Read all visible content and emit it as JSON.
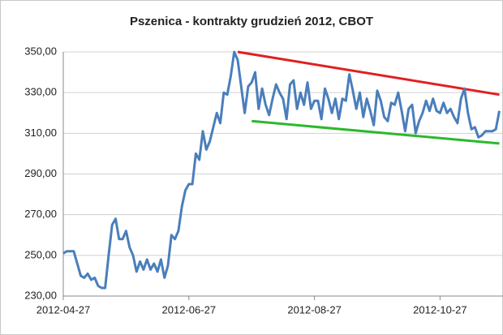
{
  "chart_data": {
    "type": "line",
    "title": "Pszenica - kontrakty grudzień 2012, CBOT",
    "categories": [
      "2012-04-27",
      null,
      null,
      null,
      null,
      null,
      null,
      null,
      null,
      null,
      null,
      null,
      null,
      null,
      null,
      null,
      null,
      null,
      null,
      null,
      null,
      null,
      null,
      null,
      null,
      null,
      null,
      null,
      null,
      null,
      null,
      null,
      null,
      null,
      null,
      null,
      "2012-06-27",
      null,
      null,
      null,
      null,
      null,
      null,
      null,
      null,
      null,
      null,
      null,
      null,
      null,
      null,
      null,
      null,
      null,
      null,
      null,
      null,
      null,
      null,
      null,
      null,
      null,
      null,
      null,
      null,
      null,
      null,
      null,
      null,
      null,
      null,
      null,
      "2012-08-27",
      null,
      null,
      null,
      null,
      null,
      null,
      null,
      null,
      null,
      null,
      null,
      null,
      null,
      null,
      null,
      null,
      null,
      null,
      null,
      null,
      null,
      null,
      null,
      null,
      null,
      null,
      null,
      null,
      null,
      null,
      null,
      null,
      null,
      null,
      null,
      "2012-10-27",
      null,
      null,
      null,
      null,
      null,
      null,
      null,
      null,
      null,
      null,
      null,
      null,
      null,
      null,
      null,
      null,
      null
    ],
    "series": [
      {
        "color": "#4a7ebb",
        "values": [
          251,
          252,
          252,
          252,
          246,
          240,
          239,
          241,
          238,
          239,
          235,
          234,
          234,
          250,
          265,
          268,
          258,
          258,
          262,
          254,
          250,
          242,
          247,
          243,
          248,
          243,
          246,
          242,
          248,
          239,
          245,
          260,
          258,
          262,
          274,
          282,
          285,
          285,
          300,
          297,
          311,
          302,
          306,
          313,
          320,
          315,
          330,
          329,
          338,
          350,
          346,
          333,
          320,
          333,
          335,
          340,
          322,
          332,
          324,
          319,
          327,
          334,
          330,
          327,
          317,
          334,
          336,
          322,
          330,
          324,
          335,
          322,
          326,
          326,
          317,
          332,
          327,
          320,
          327,
          317,
          327,
          326,
          339,
          331,
          322,
          330,
          318,
          327,
          321,
          314,
          331,
          326,
          318,
          316,
          325,
          324,
          330,
          321,
          311,
          322,
          324,
          310,
          316,
          320,
          326,
          321,
          327,
          321,
          320,
          325,
          320,
          322,
          318,
          315,
          327,
          332,
          320,
          312,
          313,
          308,
          309,
          311,
          311,
          311,
          312,
          321
        ]
      }
    ],
    "trendlines": [
      {
        "color": "#e02020",
        "x": [
          50,
          125
        ],
        "values": [
          350,
          329
        ]
      },
      {
        "color": "#2db82d",
        "x": [
          54,
          125
        ],
        "values": [
          316,
          305
        ]
      }
    ],
    "ylim": [
      230,
      350
    ],
    "yticks": [
      {
        "value": 230,
        "label": "230,00"
      },
      {
        "value": 250,
        "label": "250,00"
      },
      {
        "value": 270,
        "label": "270,00"
      },
      {
        "value": 290,
        "label": "290,00"
      },
      {
        "value": 310,
        "label": "310,00"
      },
      {
        "value": 330,
        "label": "330,00"
      },
      {
        "value": 350,
        "label": "350,00"
      }
    ],
    "grid": true
  }
}
